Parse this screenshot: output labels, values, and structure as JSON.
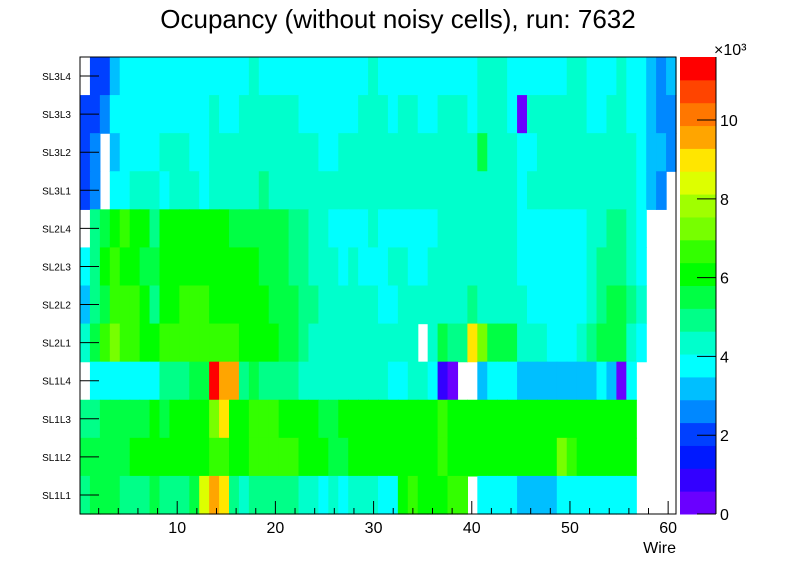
{
  "chart_data": {
    "type": "heatmap",
    "title": "Ocupancy (without noisy cells), run: 7632",
    "xlabel": "Wire",
    "ylabel": "",
    "xlim": [
      0.1,
      60.8
    ],
    "x_ticks": [
      10,
      20,
      30,
      40,
      50,
      60
    ],
    "x_bins": 60,
    "zlim": [
      0,
      11.6
    ],
    "z_multiplier_label": "×10³",
    "z_ticks": [
      0,
      2,
      4,
      6,
      8,
      10
    ],
    "palette": [
      "#6a00ff",
      "#3300ff",
      "#0019ff",
      "#0040ff",
      "#0088ff",
      "#00bfff",
      "#00ffff",
      "#00ffcc",
      "#00ff88",
      "#00ff44",
      "#00ff00",
      "#33ff00",
      "#77ff00",
      "#a0ff00",
      "#ddff00",
      "#ffe600",
      "#ffa500",
      "#ff7700",
      "#ff4400",
      "#ff0000"
    ],
    "rows": [
      {
        "label": "SL3L4",
        "values": [
          null,
          2.0,
          2.0,
          3.2,
          3.8,
          3.8,
          3.8,
          3.8,
          3.8,
          3.8,
          3.8,
          3.8,
          3.8,
          3.8,
          3.8,
          3.8,
          3.8,
          4.4,
          3.8,
          3.8,
          3.8,
          3.8,
          3.8,
          3.8,
          3.8,
          3.8,
          3.8,
          3.8,
          3.8,
          4.4,
          3.8,
          3.8,
          3.8,
          3.8,
          3.8,
          3.8,
          3.8,
          3.8,
          3.8,
          3.8,
          4.4,
          4.4,
          4.4,
          3.8,
          3.8,
          3.8,
          3.8,
          3.8,
          3.8,
          4.4,
          4.4,
          3.8,
          3.8,
          3.8,
          4.4,
          3.8,
          3.8,
          3.2,
          2.6,
          3.2
        ]
      },
      {
        "label": "SL3L3",
        "values": [
          2.0,
          2.0,
          2.6,
          3.8,
          3.8,
          3.8,
          3.8,
          3.8,
          3.8,
          3.8,
          3.8,
          3.8,
          3.8,
          4.4,
          3.8,
          3.8,
          4.4,
          4.4,
          4.4,
          4.4,
          4.4,
          4.4,
          3.8,
          3.8,
          3.8,
          3.8,
          3.8,
          3.8,
          4.4,
          4.4,
          4.4,
          3.8,
          4.4,
          4.4,
          3.8,
          3.8,
          4.4,
          4.4,
          4.4,
          3.8,
          4.4,
          4.4,
          4.4,
          3.8,
          0.3,
          4.4,
          4.4,
          4.4,
          4.4,
          4.4,
          4.4,
          3.8,
          3.8,
          4.4,
          4.4,
          3.8,
          3.8,
          3.2,
          2.6,
          2.6
        ]
      },
      {
        "label": "SL3L2",
        "values": [
          2.0,
          2.6,
          null,
          3.2,
          3.8,
          3.8,
          3.8,
          3.8,
          4.4,
          4.4,
          4.4,
          3.8,
          3.8,
          4.4,
          4.4,
          4.4,
          4.4,
          4.4,
          4.4,
          4.4,
          4.4,
          4.4,
          4.4,
          4.4,
          3.8,
          3.8,
          4.4,
          4.4,
          4.4,
          4.4,
          4.4,
          4.4,
          4.4,
          4.4,
          4.4,
          4.4,
          4.4,
          4.4,
          4.4,
          4.4,
          5.5,
          4.4,
          4.4,
          4.4,
          3.8,
          3.8,
          4.4,
          4.4,
          4.4,
          4.4,
          4.4,
          4.4,
          4.4,
          4.4,
          4.4,
          4.4,
          3.8,
          3.2,
          3.2,
          2.6
        ]
      },
      {
        "label": "SL3L1",
        "values": [
          2.0,
          2.6,
          null,
          3.8,
          3.8,
          4.4,
          4.4,
          4.4,
          3.8,
          4.4,
          4.4,
          4.4,
          3.8,
          4.4,
          4.4,
          4.4,
          4.4,
          4.4,
          4.9,
          4.4,
          4.4,
          4.4,
          4.4,
          4.4,
          4.4,
          4.4,
          4.4,
          4.4,
          4.4,
          4.4,
          4.4,
          4.4,
          4.4,
          4.4,
          4.4,
          4.4,
          4.4,
          4.4,
          4.4,
          4.4,
          4.4,
          4.4,
          4.4,
          4.4,
          3.8,
          4.4,
          4.4,
          4.4,
          4.4,
          4.4,
          4.4,
          4.4,
          4.4,
          4.4,
          4.4,
          4.4,
          3.8,
          3.2,
          2.6,
          null
        ]
      },
      {
        "label": "SL2L4",
        "values": [
          null,
          4.9,
          5.5,
          6.1,
          6.7,
          6.1,
          6.1,
          4.9,
          6.1,
          6.1,
          6.1,
          6.1,
          6.1,
          6.1,
          6.1,
          5.5,
          5.5,
          5.5,
          5.5,
          5.5,
          5.5,
          4.9,
          4.9,
          4.4,
          4.4,
          3.8,
          3.8,
          3.8,
          3.8,
          4.4,
          3.8,
          3.8,
          3.8,
          3.8,
          3.8,
          3.8,
          4.4,
          4.4,
          4.4,
          4.4,
          4.4,
          4.4,
          4.4,
          4.4,
          3.8,
          3.8,
          3.8,
          3.8,
          3.8,
          3.8,
          3.8,
          4.4,
          4.4,
          4.9,
          4.9,
          4.4,
          3.8,
          null,
          null,
          null
        ]
      },
      {
        "label": "SL2L3",
        "values": [
          3.8,
          4.9,
          6.1,
          6.7,
          6.1,
          6.1,
          5.5,
          5.5,
          6.1,
          6.1,
          6.1,
          6.1,
          6.1,
          6.1,
          6.1,
          6.1,
          6.1,
          6.1,
          5.5,
          5.5,
          5.5,
          4.9,
          4.9,
          4.4,
          4.4,
          4.4,
          3.8,
          4.4,
          3.8,
          3.8,
          3.8,
          4.4,
          4.4,
          3.8,
          3.8,
          4.4,
          4.4,
          4.4,
          4.4,
          4.4,
          4.4,
          4.4,
          4.4,
          4.4,
          3.8,
          3.8,
          3.8,
          3.8,
          3.8,
          3.8,
          3.8,
          4.4,
          4.9,
          4.9,
          4.9,
          4.4,
          3.8,
          null,
          null,
          null
        ]
      },
      {
        "label": "SL2L2",
        "values": [
          3.2,
          4.9,
          5.5,
          6.7,
          6.7,
          6.7,
          6.1,
          4.9,
          6.1,
          6.1,
          6.7,
          6.7,
          6.7,
          6.1,
          6.1,
          6.1,
          6.1,
          6.1,
          6.1,
          5.5,
          5.5,
          5.5,
          4.9,
          4.9,
          4.4,
          4.4,
          4.4,
          4.4,
          4.4,
          4.4,
          3.8,
          3.8,
          4.4,
          4.4,
          4.4,
          4.4,
          4.4,
          4.4,
          4.4,
          4.9,
          4.4,
          4.4,
          4.4,
          4.4,
          4.4,
          3.8,
          3.8,
          3.8,
          3.8,
          3.8,
          3.8,
          4.4,
          4.9,
          5.5,
          5.5,
          4.9,
          4.4,
          null,
          null,
          null
        ]
      },
      {
        "label": "SL2L1",
        "values": [
          4.4,
          5.5,
          6.7,
          7.3,
          6.7,
          6.7,
          6.1,
          6.1,
          6.7,
          6.7,
          6.7,
          6.7,
          6.7,
          6.7,
          6.7,
          6.7,
          6.1,
          6.1,
          6.1,
          6.1,
          5.5,
          5.5,
          4.9,
          4.4,
          4.4,
          4.4,
          4.4,
          4.4,
          4.4,
          4.4,
          4.4,
          4.4,
          4.4,
          4.4,
          null,
          4.4,
          5.5,
          4.9,
          4.9,
          9.0,
          7.3,
          5.5,
          5.5,
          5.5,
          4.4,
          4.4,
          4.4,
          3.8,
          3.8,
          3.8,
          4.4,
          4.9,
          5.5,
          5.5,
          5.5,
          4.4,
          3.8,
          null,
          null,
          null
        ]
      },
      {
        "label": "SL1L4",
        "values": [
          null,
          3.8,
          3.8,
          3.8,
          3.8,
          3.8,
          3.8,
          3.8,
          4.9,
          4.9,
          4.9,
          5.5,
          5.5,
          11.3,
          9.6,
          9.6,
          4.9,
          5.5,
          4.9,
          4.9,
          4.9,
          4.9,
          4.4,
          4.4,
          4.4,
          4.4,
          4.4,
          4.4,
          4.4,
          4.4,
          4.4,
          3.8,
          3.8,
          4.4,
          4.4,
          3.8,
          0.9,
          0.3,
          null,
          null,
          3.2,
          3.8,
          3.8,
          3.8,
          3.2,
          3.2,
          3.2,
          3.2,
          3.2,
          3.2,
          3.2,
          3.2,
          3.8,
          3.2,
          0.3,
          3.8,
          null,
          null,
          null,
          null
        ]
      },
      {
        "label": "SL1L3",
        "values": [
          4.9,
          4.9,
          5.5,
          5.5,
          5.5,
          5.5,
          5.5,
          6.1,
          5.5,
          6.1,
          6.1,
          6.1,
          6.1,
          7.3,
          9.0,
          6.1,
          6.1,
          6.7,
          6.7,
          6.7,
          6.1,
          6.1,
          6.1,
          6.1,
          5.5,
          5.5,
          6.1,
          6.1,
          6.1,
          6.1,
          6.1,
          6.1,
          6.1,
          6.1,
          6.1,
          6.1,
          6.7,
          6.1,
          6.1,
          6.1,
          6.1,
          6.1,
          6.1,
          6.1,
          6.1,
          6.1,
          6.1,
          6.1,
          6.1,
          6.1,
          6.1,
          6.1,
          6.1,
          6.1,
          6.1,
          6.1,
          null,
          null,
          null,
          null
        ]
      },
      {
        "label": "SL1L2",
        "values": [
          5.5,
          5.5,
          5.5,
          5.5,
          5.5,
          6.1,
          6.1,
          6.1,
          6.1,
          6.1,
          6.1,
          6.1,
          6.1,
          6.7,
          6.7,
          6.1,
          6.1,
          6.7,
          6.7,
          6.7,
          6.7,
          6.7,
          6.1,
          6.1,
          6.1,
          5.5,
          5.5,
          6.1,
          6.1,
          6.1,
          6.1,
          6.1,
          6.1,
          6.1,
          6.1,
          6.1,
          6.7,
          6.1,
          6.1,
          6.1,
          6.1,
          6.1,
          6.1,
          6.1,
          6.1,
          6.1,
          6.1,
          6.1,
          7.3,
          6.7,
          6.1,
          6.1,
          6.1,
          6.1,
          6.1,
          6.1,
          null,
          null,
          null,
          null
        ]
      },
      {
        "label": "SL1L1",
        "values": [
          4.9,
          5.5,
          5.5,
          5.5,
          4.9,
          4.9,
          4.9,
          5.5,
          4.9,
          4.9,
          4.9,
          5.5,
          8.4,
          9.6,
          9.0,
          4.9,
          4.4,
          4.9,
          4.9,
          4.9,
          4.9,
          4.9,
          4.4,
          4.4,
          3.8,
          4.4,
          3.8,
          4.4,
          4.4,
          4.4,
          3.8,
          3.8,
          6.1,
          6.7,
          6.1,
          6.1,
          6.1,
          6.7,
          6.7,
          null,
          3.8,
          3.8,
          3.8,
          3.8,
          3.2,
          3.2,
          3.2,
          3.2,
          3.8,
          3.8,
          3.8,
          3.8,
          3.8,
          3.8,
          3.8,
          3.8,
          null,
          null,
          null,
          null
        ]
      }
    ]
  }
}
